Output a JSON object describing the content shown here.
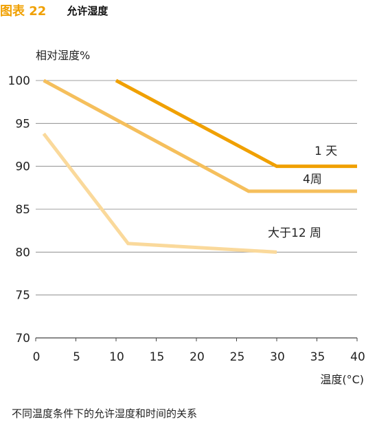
{
  "figure": {
    "label": "图表 22",
    "title": "允许湿度",
    "caption": "不同温度条件下的允许湿度和时间的关系"
  },
  "chart_data": {
    "type": "line",
    "xlabel": "温度(°C)",
    "ylabel": "相对湿度%",
    "xlim": [
      0,
      40
    ],
    "ylim": [
      70,
      100
    ],
    "xticks": [
      0,
      5,
      10,
      15,
      20,
      25,
      30,
      35,
      40
    ],
    "yticks": [
      70,
      75,
      80,
      85,
      90,
      95,
      100
    ],
    "grid": "horizontal",
    "series": [
      {
        "name": "1 天",
        "color": "#f0a000",
        "x": [
          10,
          30,
          40
        ],
        "y": [
          100,
          90,
          90
        ]
      },
      {
        "name": "4周",
        "color": "#f5bf5c",
        "x": [
          1,
          26.5,
          40
        ],
        "y": [
          100,
          87.1,
          87.1
        ]
      },
      {
        "name": "大于12 周",
        "color": "#fad99b",
        "x": [
          1,
          11.5,
          30
        ],
        "y": [
          93.8,
          81,
          80
        ]
      }
    ]
  }
}
